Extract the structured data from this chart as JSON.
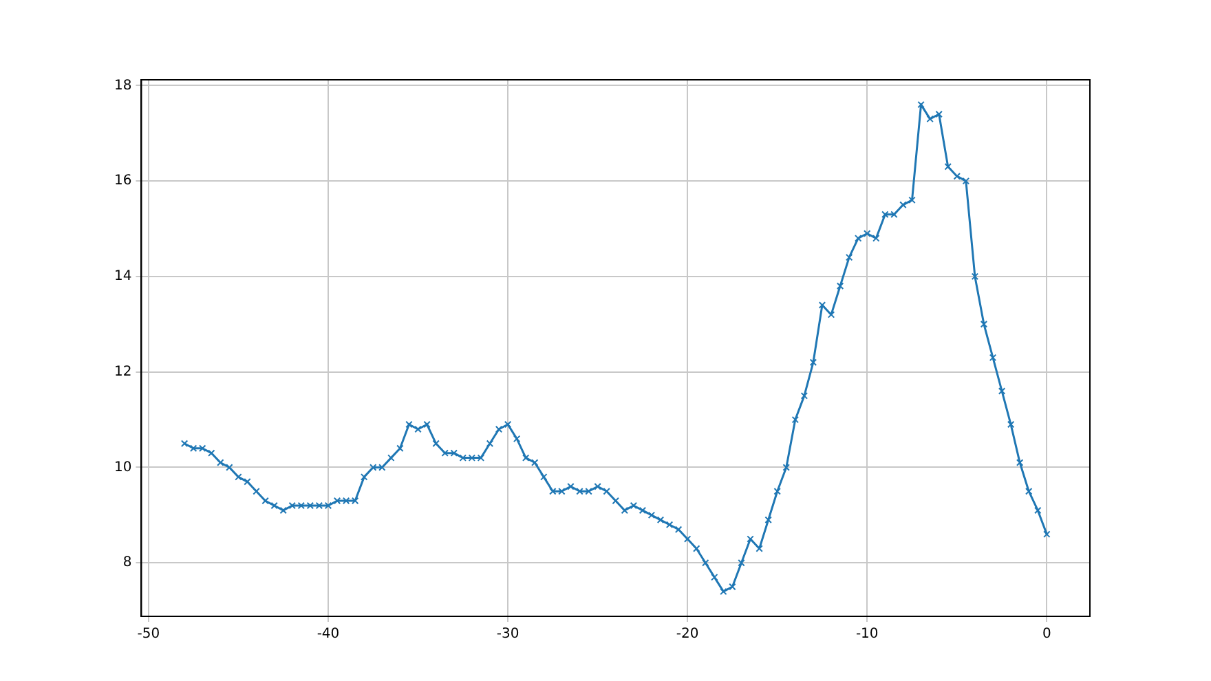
{
  "chart_data": {
    "type": "line",
    "marker": "cross",
    "grid": true,
    "xlim": [
      -50.4,
      2.4
    ],
    "ylim": [
      6.88,
      18.12
    ],
    "xticks": [
      -50,
      -40,
      -30,
      -20,
      -10,
      0
    ],
    "yticks": [
      8,
      10,
      12,
      14,
      16,
      18
    ],
    "x": [
      -48,
      -47.5,
      -47,
      -46.5,
      -46,
      -45.5,
      -45,
      -44.5,
      -44,
      -43.5,
      -43,
      -42.5,
      -42,
      -41.5,
      -41,
      -40.5,
      -40,
      -39.5,
      -39,
      -38.5,
      -38,
      -37.5,
      -37,
      -36.5,
      -36,
      -35.5,
      -35,
      -34.5,
      -34,
      -33.5,
      -33,
      -32.5,
      -32,
      -31.5,
      -31,
      -30.5,
      -30,
      -29.5,
      -29,
      -28.5,
      -28,
      -27.5,
      -27,
      -26.5,
      -26,
      -25.5,
      -25,
      -24.5,
      -24,
      -23.5,
      -23,
      -22.5,
      -22,
      -21.5,
      -21,
      -20.5,
      -20,
      -19.5,
      -19,
      -18.5,
      -18,
      -17.5,
      -17,
      -16.5,
      -16,
      -15.5,
      -15,
      -14.5,
      -14,
      -13.5,
      -13,
      -12.5,
      -12,
      -11.5,
      -11,
      -10.5,
      -10,
      -9.5,
      -9,
      -8.5,
      -8,
      -7.5,
      -7,
      -6.5,
      -6,
      -5.5,
      -5,
      -4.5,
      -4,
      -3.5,
      -3,
      -2.5,
      -2,
      -1.5,
      -1,
      -0.5,
      0
    ],
    "series": [
      {
        "color": "#1f77b4",
        "values": [
          10.5,
          10.4,
          10.4,
          10.3,
          10.1,
          10.0,
          9.8,
          9.7,
          9.5,
          9.3,
          9.2,
          9.1,
          9.2,
          9.2,
          9.2,
          9.2,
          9.2,
          9.3,
          9.3,
          9.3,
          9.8,
          10.0,
          10.0,
          10.2,
          10.4,
          10.9,
          10.8,
          10.9,
          10.5,
          10.3,
          10.3,
          10.2,
          10.2,
          10.2,
          10.5,
          10.8,
          10.9,
          10.6,
          10.2,
          10.1,
          9.8,
          9.5,
          9.5,
          9.6,
          9.5,
          9.5,
          9.6,
          9.5,
          9.3,
          9.1,
          9.2,
          9.1,
          9.0,
          8.9,
          8.8,
          8.7,
          8.5,
          8.3,
          8.0,
          7.7,
          7.4,
          7.5,
          8.0,
          8.5,
          8.3,
          8.9,
          9.5,
          10.0,
          11.0,
          11.5,
          12.2,
          13.4,
          13.2,
          13.8,
          14.4,
          14.8,
          14.9,
          14.8,
          15.3,
          15.3,
          15.5,
          15.6,
          17.6,
          17.3,
          17.4,
          16.3,
          16.1,
          16.0,
          14.0,
          13.0,
          12.3,
          11.6,
          10.9,
          10.1,
          9.5,
          9.1,
          8.6
        ]
      }
    ]
  }
}
